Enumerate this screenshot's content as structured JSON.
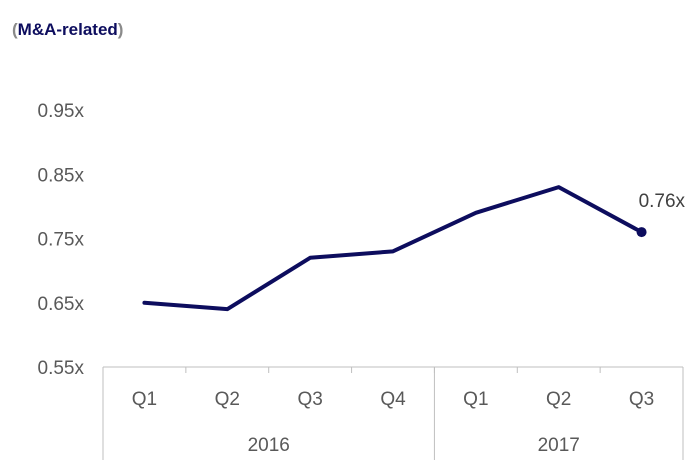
{
  "chart_data": {
    "type": "line",
    "subtitle_open": "(",
    "subtitle": "M&A-related",
    "subtitle_close": ")",
    "y_ticks": [
      "0.55x",
      "0.65x",
      "0.75x",
      "0.85x",
      "0.95x"
    ],
    "ylim": [
      0.55,
      0.95
    ],
    "categories": [
      "Q1",
      "Q2",
      "Q3",
      "Q4",
      "Q1",
      "Q2",
      "Q3"
    ],
    "groups": [
      {
        "label": "2016",
        "count": 4
      },
      {
        "label": "2017",
        "count": 3
      }
    ],
    "series": [
      {
        "values": [
          0.65,
          0.64,
          0.72,
          0.73,
          0.79,
          0.83,
          0.76
        ],
        "color": "#0d0d5e"
      }
    ],
    "end_label": "0.76x",
    "grid": false
  }
}
